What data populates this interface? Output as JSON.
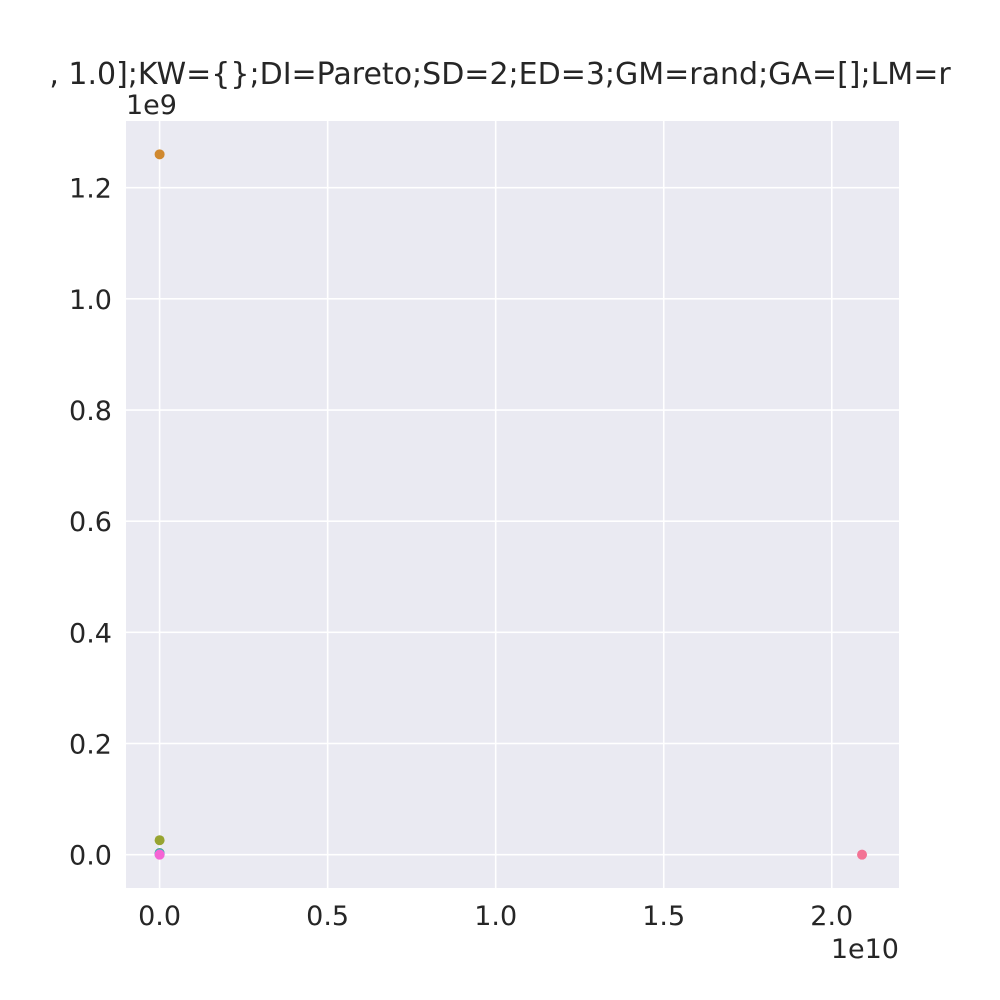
{
  "chart_data": {
    "type": "scatter",
    "title": ", 1.0];KW={};DI=Pareto;SD=2;ED=3;GM=rand;GA=[];LM=r",
    "xlabel": "",
    "ylabel": "",
    "x_offset_label": "1e10",
    "y_offset_label": "1e9",
    "x_ticks": [
      0.0,
      0.5,
      1.0,
      1.5,
      2.0
    ],
    "x_tick_labels": [
      "0.0",
      "0.5",
      "1.0",
      "1.5",
      "2.0"
    ],
    "y_ticks": [
      0.0,
      0.2,
      0.4,
      0.6,
      0.8,
      1.0,
      1.2
    ],
    "y_tick_labels": [
      "0.0",
      "0.2",
      "0.4",
      "0.6",
      "0.8",
      "1.0",
      "1.2"
    ],
    "xlim": [
      -0.1,
      2.2
    ],
    "ylim": [
      -0.06,
      1.32
    ],
    "grid": true,
    "background": "#eaeaf2",
    "points": [
      {
        "x": 0.0,
        "y": 1.26,
        "color": "#d0892f"
      },
      {
        "x": 0.0,
        "y": 0.026,
        "color": "#97a431"
      },
      {
        "x": 0.0,
        "y": 0.003,
        "color": "#5aa869"
      },
      {
        "x": 0.0,
        "y": 0.002,
        "color": "#36ada4"
      },
      {
        "x": 0.0,
        "y": 0.001,
        "color": "#39a7d0"
      },
      {
        "x": 0.0,
        "y": 0.0005,
        "color": "#a48cf4"
      },
      {
        "x": 0.0,
        "y": 0.0,
        "color": "#f564d4"
      },
      {
        "x": 2.09,
        "y": 0.0,
        "color": "#f37395"
      }
    ]
  }
}
